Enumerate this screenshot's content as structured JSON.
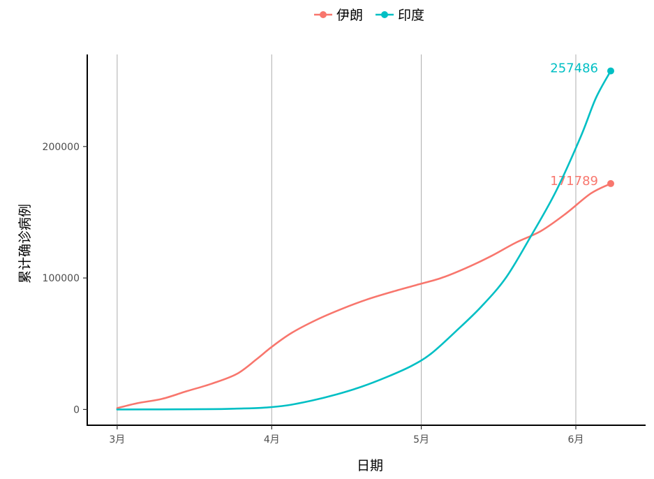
{
  "chart_data": {
    "type": "line",
    "xlabel": "日期",
    "ylabel": "累计确诊病例",
    "x_ticks": [
      {
        "date": "2020-03-01",
        "label": "3月"
      },
      {
        "date": "2020-04-01",
        "label": "4月"
      },
      {
        "date": "2020-05-01",
        "label": "5月"
      },
      {
        "date": "2020-06-01",
        "label": "6月"
      }
    ],
    "y_ticks": [
      {
        "value": 0,
        "label": "0"
      },
      {
        "value": 100000,
        "label": "100000"
      },
      {
        "value": 200000,
        "label": "200000"
      }
    ],
    "xlim": [
      "2020-02-24",
      "2020-06-15"
    ],
    "ylim": [
      -12000,
      270000
    ],
    "grid": "vertical major only",
    "legend_position": "top",
    "series": [
      {
        "name": "伊朗",
        "color": "#F8766D",
        "end_label": "171789",
        "points": [
          [
            "2020-03-01",
            978
          ],
          [
            "2020-03-05",
            4747
          ],
          [
            "2020-03-10",
            8042
          ],
          [
            "2020-03-15",
            13938
          ],
          [
            "2020-03-20",
            19644
          ],
          [
            "2020-03-25",
            27017
          ],
          [
            "2020-03-29",
            38309
          ],
          [
            "2020-04-01",
            47593
          ],
          [
            "2020-04-05",
            58226
          ],
          [
            "2020-04-10",
            68192
          ],
          [
            "2020-04-15",
            76389
          ],
          [
            "2020-04-20",
            83505
          ],
          [
            "2020-04-25",
            89328
          ],
          [
            "2020-04-30",
            94640
          ],
          [
            "2020-05-05",
            99970
          ],
          [
            "2020-05-10",
            107603
          ],
          [
            "2020-05-15",
            116635
          ],
          [
            "2020-05-20",
            126949
          ],
          [
            "2020-05-25",
            135701
          ],
          [
            "2020-05-30",
            148950
          ],
          [
            "2020-06-04",
            164270
          ],
          [
            "2020-06-08",
            171789
          ]
        ]
      },
      {
        "name": "印度",
        "color": "#00BFC4",
        "end_label": "257486",
        "points": [
          [
            "2020-03-01",
            3
          ],
          [
            "2020-03-10",
            62
          ],
          [
            "2020-03-20",
            236
          ],
          [
            "2020-03-25",
            657
          ],
          [
            "2020-03-30",
            1251
          ],
          [
            "2020-04-04",
            3082
          ],
          [
            "2020-04-09",
            6725
          ],
          [
            "2020-04-14",
            11439
          ],
          [
            "2020-04-19",
            17265
          ],
          [
            "2020-04-24",
            24530
          ],
          [
            "2020-04-29",
            33050
          ],
          [
            "2020-05-03",
            42533
          ],
          [
            "2020-05-08",
            59662
          ],
          [
            "2020-05-13",
            78055
          ],
          [
            "2020-05-18",
            100328
          ],
          [
            "2020-05-23",
            131868
          ],
          [
            "2020-05-28",
            165799
          ],
          [
            "2020-06-02",
            207615
          ],
          [
            "2020-06-05",
            236657
          ],
          [
            "2020-06-08",
            257486
          ]
        ]
      }
    ]
  }
}
